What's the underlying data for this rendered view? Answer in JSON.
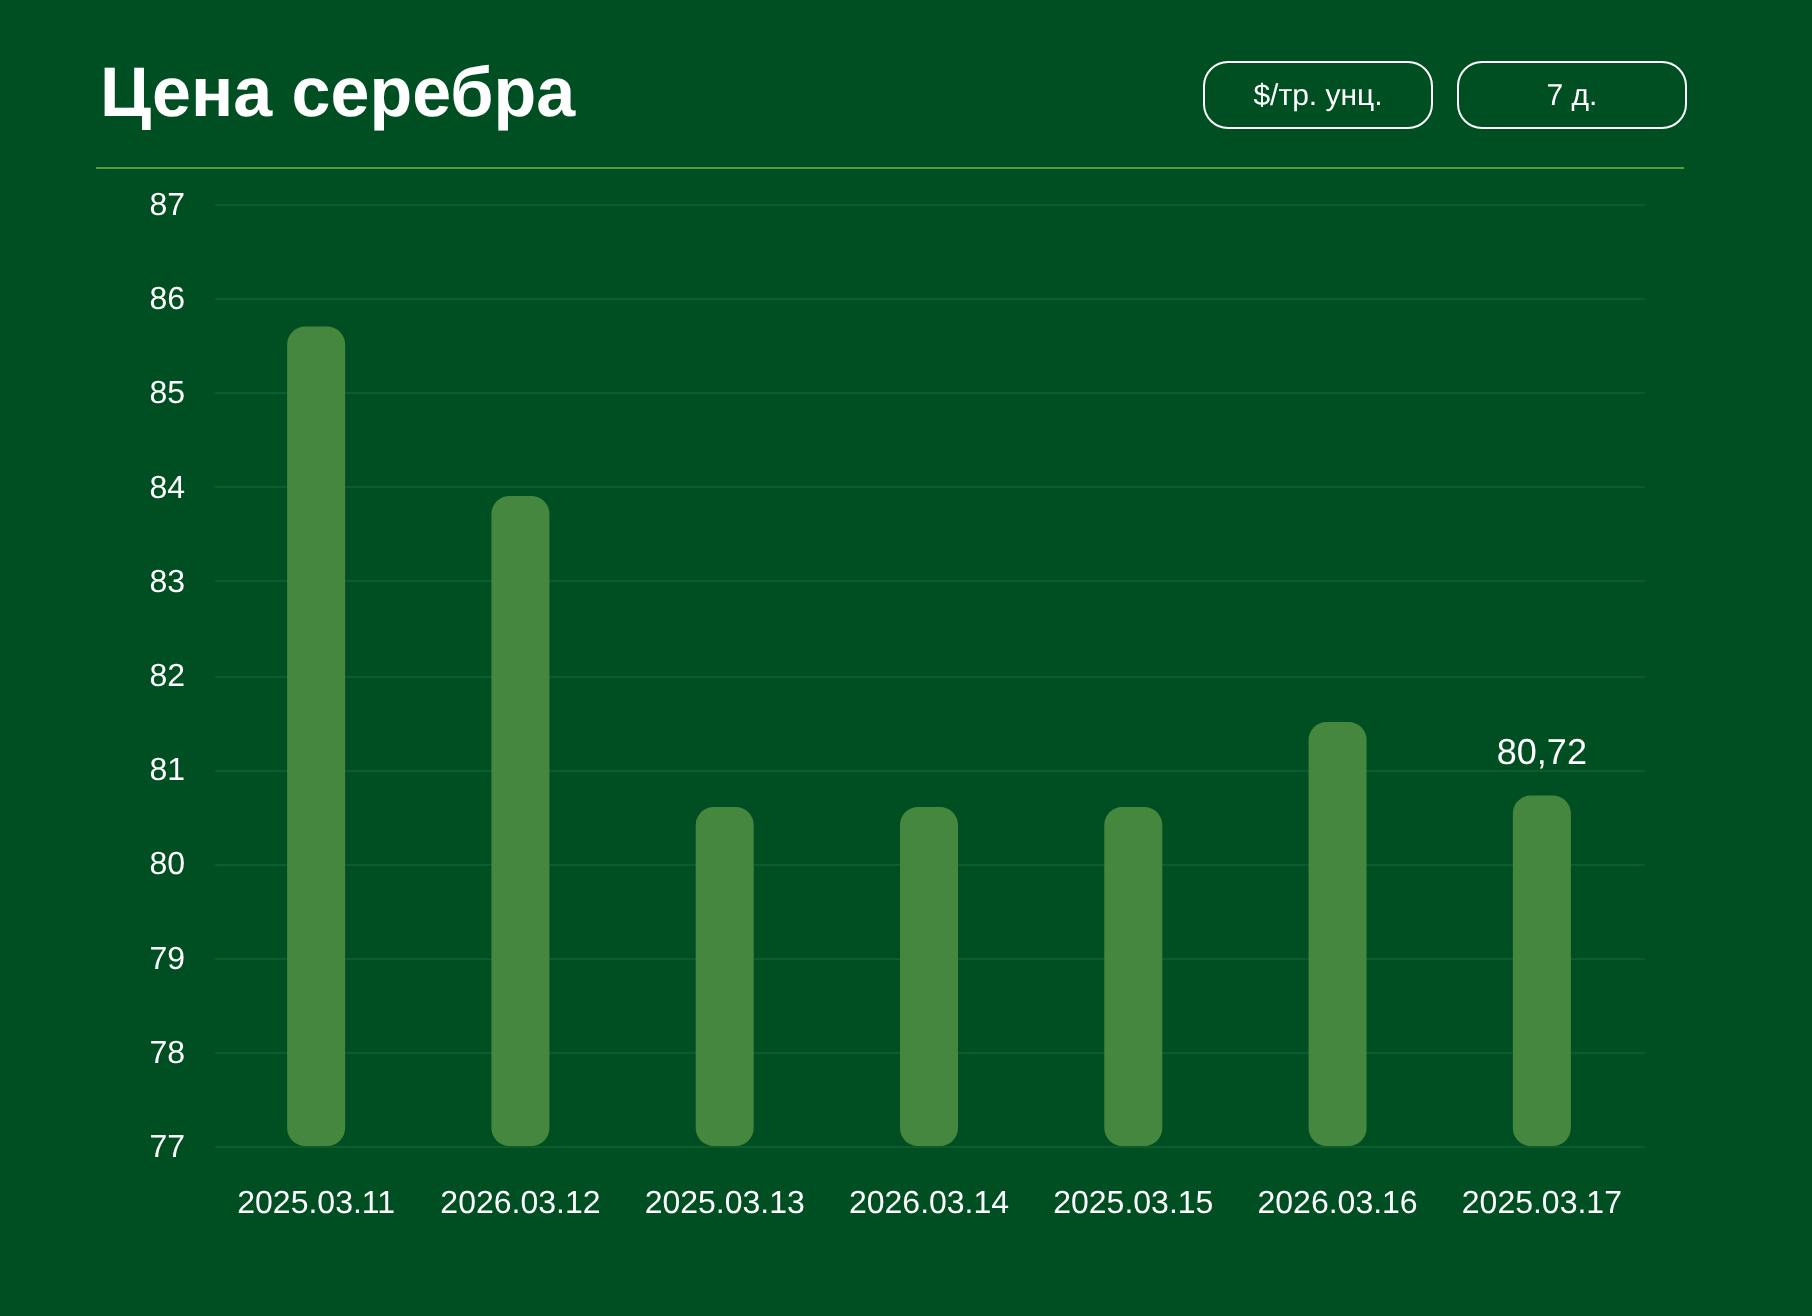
{
  "chart_data": {
    "type": "bar",
    "title": "Цена серебра",
    "annotations": [
      "$/тр. унц.",
      "7 д."
    ],
    "categories": [
      "2025.03.11",
      "2026.03.12",
      "2025.03.13",
      "2026.03.14",
      "2025.03.15",
      "2026.03.16",
      "2025.03.17"
    ],
    "values": [
      85.7,
      83.9,
      80.6,
      80.6,
      80.6,
      81.5,
      80.72
    ],
    "value_labels": [
      null,
      null,
      null,
      null,
      null,
      null,
      "80,72"
    ],
    "color": "#45873f",
    "ylim": [
      77,
      87
    ],
    "yticks": [
      77,
      78,
      79,
      80,
      81,
      82,
      83,
      84,
      85,
      86,
      87
    ],
    "grid": "y"
  }
}
